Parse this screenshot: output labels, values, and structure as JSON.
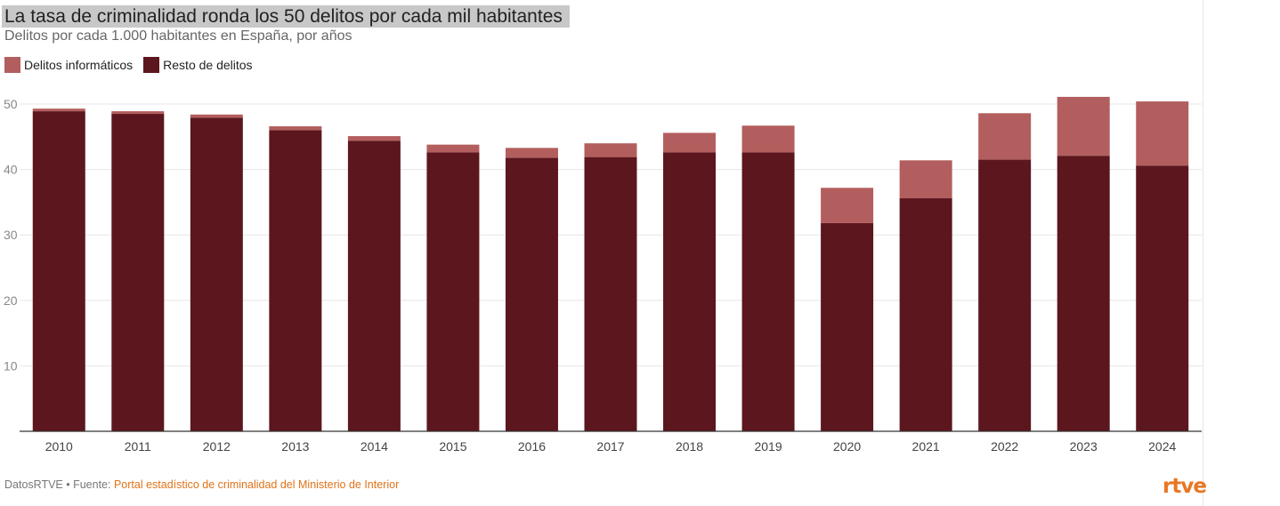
{
  "header": {
    "title": "La tasa de criminalidad ronda los 50 delitos por cada mil habitantes",
    "subtitle": "Delitos por cada 1.000 habitantes en España, por años"
  },
  "legend": {
    "informaticos": "Delitos informáticos",
    "resto": "Resto de delitos"
  },
  "colors": {
    "informaticos": "#b35e5e",
    "resto": "#5c161e",
    "grid": "#e6e6e6",
    "axis": "#333333"
  },
  "chart_data": {
    "type": "bar",
    "stacked": true,
    "categories": [
      "2010",
      "2011",
      "2012",
      "2013",
      "2014",
      "2015",
      "2016",
      "2017",
      "2018",
      "2019",
      "2020",
      "2021",
      "2022",
      "2023",
      "2024"
    ],
    "series": [
      {
        "name": "Resto de delitos",
        "values": [
          48.9,
          48.5,
          47.9,
          46.0,
          44.4,
          42.6,
          41.8,
          41.9,
          42.6,
          42.6,
          31.8,
          35.6,
          41.5,
          42.1,
          40.6
        ]
      },
      {
        "name": "Delitos informáticos",
        "values": [
          0.4,
          0.4,
          0.5,
          0.6,
          0.7,
          1.2,
          1.5,
          2.1,
          3.0,
          4.1,
          5.4,
          5.8,
          7.1,
          9.0,
          9.8
        ]
      }
    ],
    "ylim": [
      0,
      50
    ],
    "yticks": [
      10,
      20,
      30,
      40,
      50
    ],
    "grid": true,
    "legend_position": "top-left"
  },
  "footer": {
    "prefix": "DatosRTVE • Fuente: ",
    "source": "Portal estadístico de criminalidad del Ministerio de Interior",
    "logo": "rtve"
  }
}
